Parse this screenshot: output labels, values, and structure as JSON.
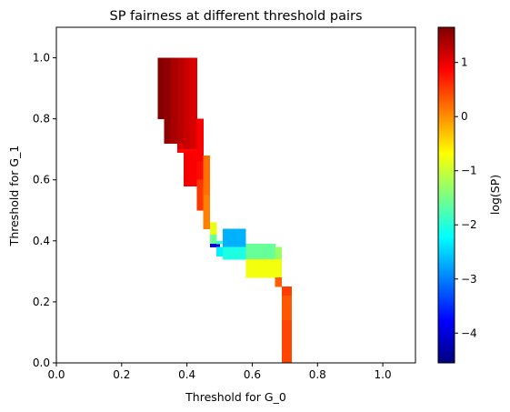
{
  "chart_data": {
    "type": "heatmap",
    "title": "SP fairness at different threshold pairs",
    "xlabel": "Threshold for G_0",
    "ylabel": "Threshold for G_1",
    "xlim": [
      0.0,
      1.1
    ],
    "ylim": [
      0.0,
      1.1
    ],
    "xticks": [
      "0.0",
      "0.2",
      "0.4",
      "0.6",
      "0.8",
      "1.0"
    ],
    "yticks": [
      "0.0",
      "0.2",
      "0.4",
      "0.6",
      "0.8",
      "1.0"
    ],
    "grid": false,
    "colormap": "jet",
    "colorbar": {
      "label": "log(SP)",
      "range": [
        -4.55,
        1.65
      ],
      "ticks": [
        "1",
        "0",
        "−1",
        "−2",
        "−3",
        "−4"
      ],
      "tick_values": [
        1,
        0,
        -1,
        -2,
        -3,
        -4
      ],
      "stops": [
        "#00007f",
        "#0000ff",
        "#007fff",
        "#00ffff",
        "#7fff7f",
        "#ffff00",
        "#ff7f00",
        "#ff0000",
        "#7f0000"
      ]
    },
    "cell_width": 0.02,
    "cell_height": 0.02,
    "cells": [
      {
        "x0": 0.31,
        "x1": 0.33,
        "y0": 0.8,
        "y1": 1.0,
        "value": 1.6
      },
      {
        "x0": 0.33,
        "x1": 0.35,
        "y0": 0.72,
        "y1": 1.0,
        "value": 1.55
      },
      {
        "x0": 0.35,
        "x1": 0.37,
        "y0": 0.72,
        "y1": 1.0,
        "value": 1.4
      },
      {
        "x0": 0.37,
        "x1": 0.39,
        "y0": 0.72,
        "y1": 1.0,
        "value": 1.3
      },
      {
        "x0": 0.37,
        "x1": 0.39,
        "y0": 0.7,
        "y1": 0.72,
        "value": 1.1
      },
      {
        "x0": 0.39,
        "x1": 0.41,
        "y0": 0.7,
        "y1": 1.0,
        "value": 1.2
      },
      {
        "x0": 0.41,
        "x1": 0.43,
        "y0": 0.7,
        "y1": 1.0,
        "value": 1.1
      },
      {
        "x0": 0.37,
        "x1": 0.39,
        "y0": 0.69,
        "y1": 0.7,
        "value": 0.85
      },
      {
        "x0": 0.39,
        "x1": 0.41,
        "y0": 0.69,
        "y1": 0.7,
        "value": 0.85
      },
      {
        "x0": 0.41,
        "x1": 0.43,
        "y0": 0.69,
        "y1": 0.7,
        "value": 0.85
      },
      {
        "x0": 0.39,
        "x1": 0.41,
        "y0": 0.58,
        "y1": 0.69,
        "value": 0.95
      },
      {
        "x0": 0.41,
        "x1": 0.43,
        "y0": 0.58,
        "y1": 0.69,
        "value": 0.9
      },
      {
        "x0": 0.43,
        "x1": 0.45,
        "y0": 0.66,
        "y1": 0.8,
        "value": 0.9
      },
      {
        "x0": 0.43,
        "x1": 0.45,
        "y0": 0.6,
        "y1": 0.66,
        "value": 0.8
      },
      {
        "x0": 0.43,
        "x1": 0.45,
        "y0": 0.5,
        "y1": 0.6,
        "value": 0.55
      },
      {
        "x0": 0.45,
        "x1": 0.47,
        "y0": 0.55,
        "y1": 0.68,
        "value": 0.2
      },
      {
        "x0": 0.45,
        "x1": 0.47,
        "y0": 0.44,
        "y1": 0.55,
        "value": 0.1
      },
      {
        "x0": 0.47,
        "x1": 0.49,
        "y0": 0.42,
        "y1": 0.46,
        "value": -0.8
      },
      {
        "x0": 0.47,
        "x1": 0.49,
        "y0": 0.39,
        "y1": 0.42,
        "value": -1.6
      },
      {
        "x0": 0.47,
        "x1": 0.5,
        "y0": 0.38,
        "y1": 0.39,
        "value": -4.0
      },
      {
        "x0": 0.49,
        "x1": 0.51,
        "y0": 0.39,
        "y1": 0.4,
        "value": -1.9
      },
      {
        "x0": 0.49,
        "x1": 0.51,
        "y0": 0.35,
        "y1": 0.38,
        "value": -2.3
      },
      {
        "x0": 0.51,
        "x1": 0.58,
        "y0": 0.38,
        "y1": 0.44,
        "value": -2.7
      },
      {
        "x0": 0.51,
        "x1": 0.58,
        "y0": 0.34,
        "y1": 0.38,
        "value": -2.05
      },
      {
        "x0": 0.58,
        "x1": 0.67,
        "y0": 0.34,
        "y1": 0.39,
        "value": -1.6
      },
      {
        "x0": 0.67,
        "x1": 0.69,
        "y0": 0.34,
        "y1": 0.38,
        "value": -1.3
      },
      {
        "x0": 0.58,
        "x1": 0.69,
        "y0": 0.28,
        "y1": 0.34,
        "value": -0.75
      },
      {
        "x0": 0.67,
        "x1": 0.69,
        "y0": 0.25,
        "y1": 0.28,
        "value": 0.3
      },
      {
        "x0": 0.69,
        "x1": 0.72,
        "y0": 0.22,
        "y1": 0.25,
        "value": 0.5
      },
      {
        "x0": 0.69,
        "x1": 0.72,
        "y0": 0.14,
        "y1": 0.22,
        "value": 0.35
      },
      {
        "x0": 0.69,
        "x1": 0.72,
        "y0": 0.0,
        "y1": 0.14,
        "value": 0.45
      }
    ]
  }
}
